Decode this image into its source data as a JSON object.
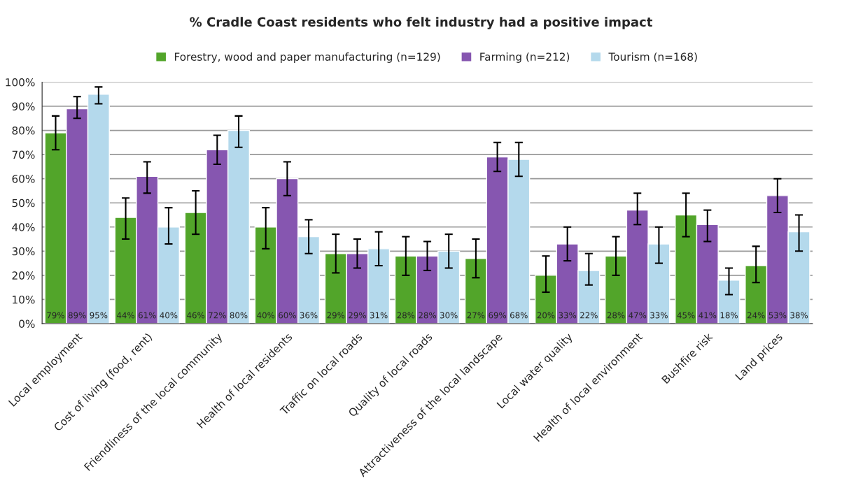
{
  "chart_data": {
    "type": "bar",
    "title": "% Cradle Coast residents who felt industry had a positive impact",
    "categories": [
      "Local employment",
      "Cost of living (food, rent)",
      "Friendliness of the local community",
      "Health of local residents",
      "Traffic on local roads",
      "Quality of local roads",
      "Attractiveness of the local landscape",
      "Local water quality",
      "Health of local environment",
      "Bushfire risk",
      "Land prices"
    ],
    "series": [
      {
        "name": "Forestry, wood and paper manufacturing (n=129)",
        "color": "#52a52a",
        "values": [
          79,
          44,
          46,
          40,
          29,
          28,
          27,
          20,
          28,
          45,
          24
        ],
        "value_labels": [
          "79%",
          "44%",
          "46%",
          "40%",
          "29%",
          "28%",
          "27%",
          "20%",
          "28%",
          "45%",
          "24%"
        ],
        "errors": [
          [
            72,
            86
          ],
          [
            35,
            52
          ],
          [
            37,
            55
          ],
          [
            31,
            48
          ],
          [
            21,
            37
          ],
          [
            20,
            36
          ],
          [
            19,
            35
          ],
          [
            13,
            28
          ],
          [
            20,
            36
          ],
          [
            36,
            54
          ],
          [
            17,
            32
          ]
        ]
      },
      {
        "name": "Farming (n=212)",
        "color": "#8656b0",
        "values": [
          89,
          61,
          72,
          60,
          29,
          28,
          69,
          33,
          47,
          41,
          53
        ],
        "value_labels": [
          "89%",
          "61%",
          "72%",
          "60%",
          "29%",
          "28%",
          "69%",
          "33%",
          "47%",
          "41%",
          "53%"
        ],
        "errors": [
          [
            85,
            94
          ],
          [
            54,
            67
          ],
          [
            66,
            78
          ],
          [
            53,
            67
          ],
          [
            23,
            35
          ],
          [
            22,
            34
          ],
          [
            63,
            75
          ],
          [
            26,
            40
          ],
          [
            41,
            54
          ],
          [
            34,
            47
          ],
          [
            46,
            60
          ]
        ]
      },
      {
        "name": "Tourism (n=168)",
        "color": "#b4d9ec",
        "values": [
          95,
          40,
          80,
          36,
          31,
          30,
          68,
          22,
          33,
          18,
          38
        ],
        "value_labels": [
          "95%",
          "40%",
          "80%",
          "36%",
          "31%",
          "30%",
          "68%",
          "22%",
          "33%",
          "18%",
          "38%"
        ],
        "errors": [
          [
            91,
            98
          ],
          [
            33,
            48
          ],
          [
            73,
            86
          ],
          [
            29,
            43
          ],
          [
            24,
            38
          ],
          [
            23,
            37
          ],
          [
            61,
            75
          ],
          [
            16,
            29
          ],
          [
            25,
            40
          ],
          [
            12,
            23
          ],
          [
            30,
            45
          ]
        ]
      }
    ],
    "ylim": [
      0,
      100
    ],
    "yticks": [
      {
        "value": 0,
        "label": "0%"
      },
      {
        "value": 10,
        "label": "10%"
      },
      {
        "value": 20,
        "label": "20%"
      },
      {
        "value": 30,
        "label": "30%"
      },
      {
        "value": 40,
        "label": "40%"
      },
      {
        "value": 50,
        "label": "50%"
      },
      {
        "value": 60,
        "label": "60%"
      },
      {
        "value": 70,
        "label": "70%"
      },
      {
        "value": 80,
        "label": "80%"
      },
      {
        "value": 90,
        "label": "90%"
      },
      {
        "value": 100,
        "label": "100%"
      }
    ],
    "grid": "y",
    "legend": "top"
  }
}
